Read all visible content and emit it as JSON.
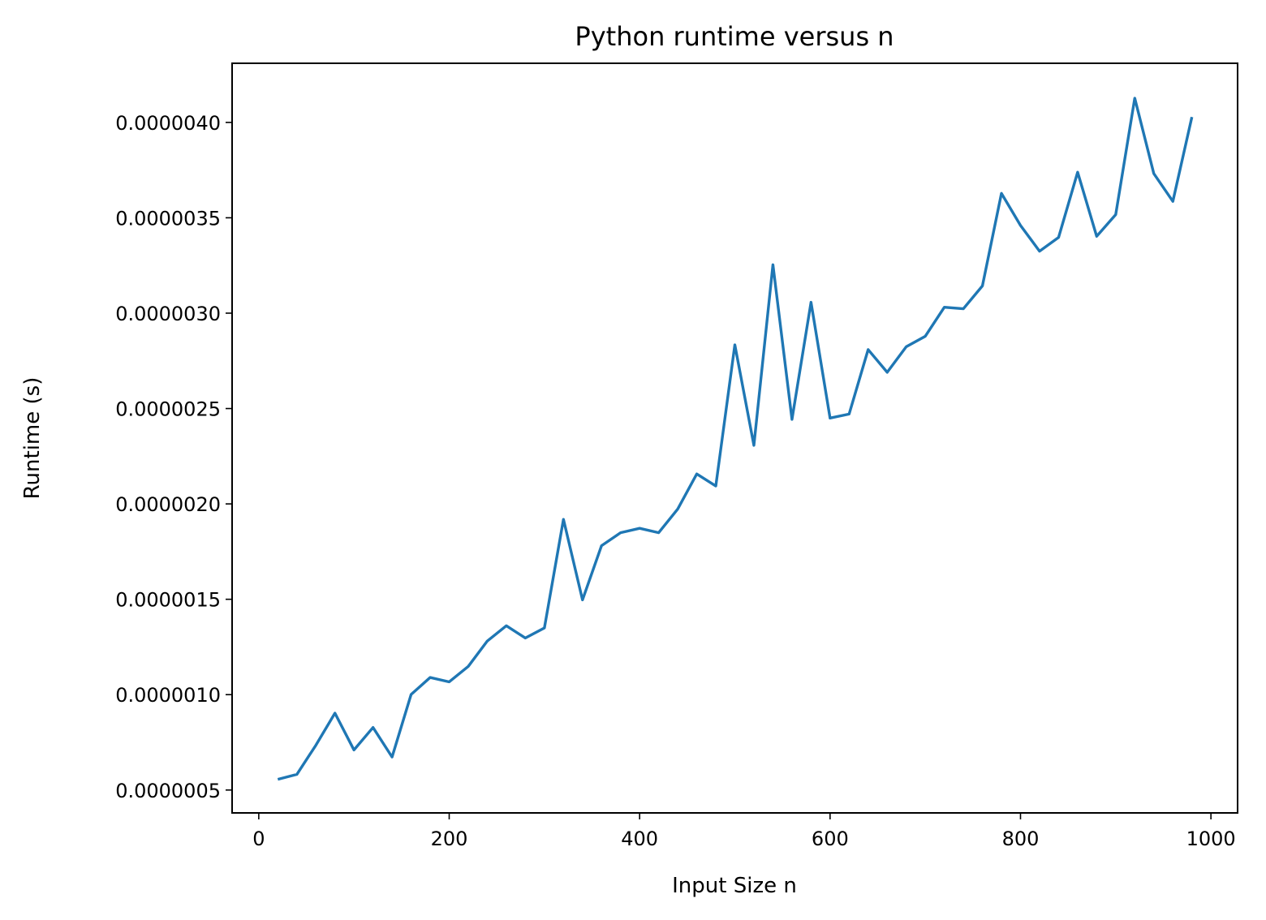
{
  "chart_data": {
    "type": "line",
    "title": "Python runtime versus n",
    "xlabel": "Input Size n",
    "ylabel": "Runtime (s)",
    "xlim": [
      -28,
      1028
    ],
    "ylim": [
      3.8e-07,
      4.31e-06
    ],
    "x_ticks": [
      0,
      200,
      400,
      600,
      800,
      1000
    ],
    "x_tick_labels": [
      "0",
      "200",
      "400",
      "600",
      "800",
      "1000"
    ],
    "y_ticks": [
      5e-07,
      1e-06,
      1.5e-06,
      2e-06,
      2.5e-06,
      3e-06,
      3.5e-06,
      4e-06
    ],
    "y_tick_labels": [
      "0.0000005",
      "0.0000010",
      "0.0000015",
      "0.0000020",
      "0.0000025",
      "0.0000030",
      "0.0000035",
      "0.0000040"
    ],
    "grid": false,
    "color": "#1f77b4",
    "series": [
      {
        "x": [
          20,
          40,
          60,
          80,
          100,
          120,
          140,
          160,
          180,
          200,
          220,
          240,
          260,
          280,
          300,
          320,
          340,
          360,
          380,
          400,
          420,
          440,
          460,
          480,
          500,
          520,
          540,
          560,
          580,
          600,
          620,
          640,
          660,
          680,
          700,
          720,
          740,
          760,
          780,
          800,
          820,
          840,
          860,
          880,
          900,
          920,
          940,
          960,
          980
        ],
        "y": [
          5.56e-07,
          5.82e-07,
          7.35e-07,
          9.03e-07,
          7.1e-07,
          8.28e-07,
          6.73e-07,
          1.001e-06,
          1.09e-06,
          1.067e-06,
          1.148e-06,
          1.281e-06,
          1.361e-06,
          1.297e-06,
          1.35e-06,
          1.919e-06,
          1.497e-06,
          1.781e-06,
          1.849e-06,
          1.872e-06,
          1.849e-06,
          1.973e-06,
          2.157e-06,
          2.094e-06,
          2.834e-06,
          2.307e-06,
          3.254e-06,
          2.443e-06,
          3.057e-06,
          2.45e-06,
          2.471e-06,
          2.809e-06,
          2.69e-06,
          2.824e-06,
          2.879e-06,
          3.031e-06,
          3.023e-06,
          3.143e-06,
          3.628e-06,
          3.46e-06,
          3.325e-06,
          3.397e-06,
          3.739e-06,
          3.403e-06,
          3.517e-06,
          4.127e-06,
          3.732e-06,
          3.586e-06,
          4.028e-06
        ]
      }
    ]
  }
}
